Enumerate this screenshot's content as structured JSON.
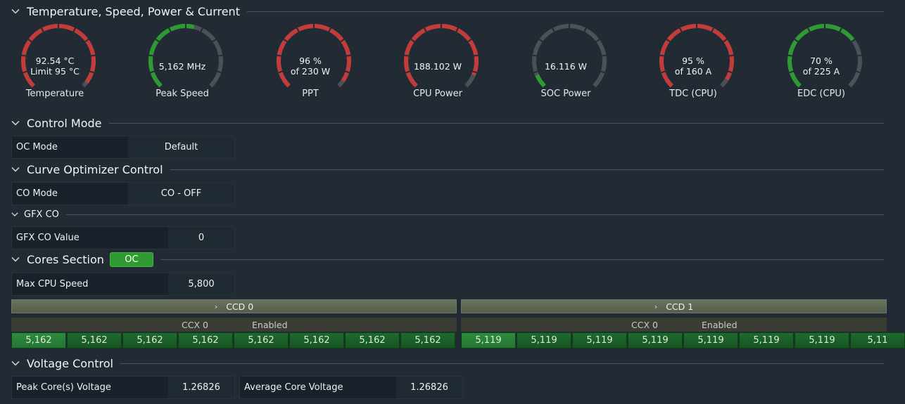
{
  "sections": {
    "tsp": "Temperature, Speed, Power & Current",
    "control_mode": "Control Mode",
    "curve_optimizer": "Curve Optimizer Control",
    "gfx_co": "GFX CO",
    "cores": "Cores Section",
    "cores_badge": "OC",
    "voltage": "Voltage Control"
  },
  "gauges": [
    {
      "line1": "92.54 °C",
      "line2": "Limit 95 °C",
      "label": "Temperature",
      "fraction": 0.97,
      "color": "#c33b3b"
    },
    {
      "line1": "5,162  MHz",
      "line2": "",
      "label": "Peak Speed",
      "fraction": 0.55,
      "color": "#2f9a34"
    },
    {
      "line1": "96 %",
      "line2": "of 230 W",
      "label": "PPT",
      "fraction": 0.96,
      "color": "#c33b3b"
    },
    {
      "line1": "188.102 W",
      "line2": "",
      "label": "CPU Power",
      "fraction": 0.92,
      "color": "#c33b3b"
    },
    {
      "line1": "16.116 W",
      "line2": "",
      "label": "SOC Power",
      "fraction": 0.08,
      "color": "#2f9a34"
    },
    {
      "line1": "95 %",
      "line2": "of 160 A",
      "label": "TDC (CPU)",
      "fraction": 0.95,
      "color": "#c33b3b"
    },
    {
      "line1": "70 %",
      "line2": "of 225 A",
      "label": "EDC (CPU)",
      "fraction": 0.7,
      "color": "#2f9a34"
    }
  ],
  "oc_mode": {
    "label": "OC Mode",
    "value": "Default"
  },
  "co_mode": {
    "label": "CO Mode",
    "value": "CO - OFF"
  },
  "gfx_co_value": {
    "label": "GFX CO Value",
    "value": "0"
  },
  "max_cpu_speed": {
    "label": "Max CPU Speed",
    "value": "5,800"
  },
  "ccd0": {
    "title": "CCD 0",
    "ccx": "CCX 0",
    "status": "Enabled",
    "cores": [
      "5,162",
      "5,162",
      "5,162",
      "5,162",
      "5,162",
      "5,162",
      "5,162",
      "5,162"
    ]
  },
  "ccd1": {
    "title": "CCD 1",
    "ccx": "CCX 0",
    "status": "Enabled",
    "cores": [
      "5,119",
      "5,119",
      "5,119",
      "5,119",
      "5,119",
      "5,119",
      "5,119",
      "5,11"
    ]
  },
  "voltage": {
    "peak_label": "Peak Core(s) Voltage",
    "peak_value": "1.26826",
    "avg_label": "Average Core Voltage",
    "avg_value": "1.26826"
  },
  "colors": {
    "red": "#c33b3b",
    "green": "#2f9a34",
    "track": "#4a5158"
  }
}
